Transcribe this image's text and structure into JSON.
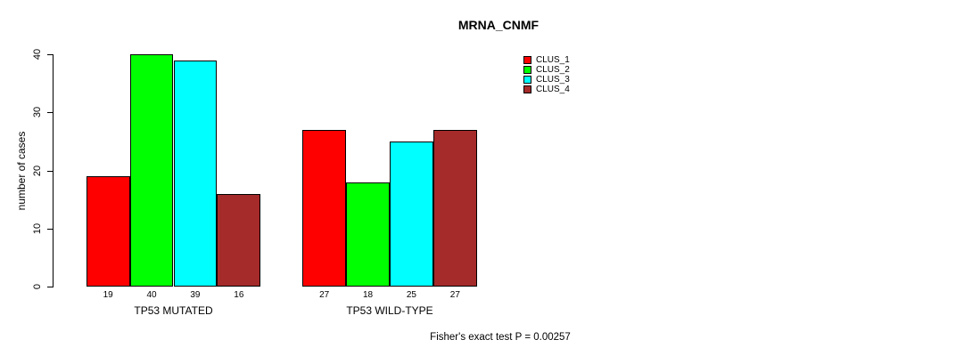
{
  "chart_data": {
    "type": "bar",
    "title": "MRNA_CNMF",
    "xlabel": "",
    "ylabel": "number of cases",
    "ylim": [
      0,
      40
    ],
    "yticks": [
      0,
      10,
      20,
      30,
      40
    ],
    "grid": false,
    "legend_position": "top-right",
    "categories": [
      "TP53 MUTATED",
      "TP53 WILD-TYPE"
    ],
    "series": [
      {
        "name": "CLUS_1",
        "color": "#FF0000",
        "values": [
          19,
          27
        ]
      },
      {
        "name": "CLUS_2",
        "color": "#00FF00",
        "values": [
          40,
          18
        ]
      },
      {
        "name": "CLUS_3",
        "color": "#00FFFF",
        "values": [
          39,
          25
        ]
      },
      {
        "name": "CLUS_4",
        "color": "#A52A2A",
        "values": [
          16,
          27
        ]
      }
    ],
    "bar_value_labels": [
      [
        19,
        40,
        39,
        16
      ],
      [
        27,
        18,
        25,
        27
      ]
    ],
    "annotation": "Fisher's exact test P = 0.00257",
    "axis_color": "#000000",
    "bar_border_color": "#000000",
    "background_color": "#FFFFFF"
  }
}
